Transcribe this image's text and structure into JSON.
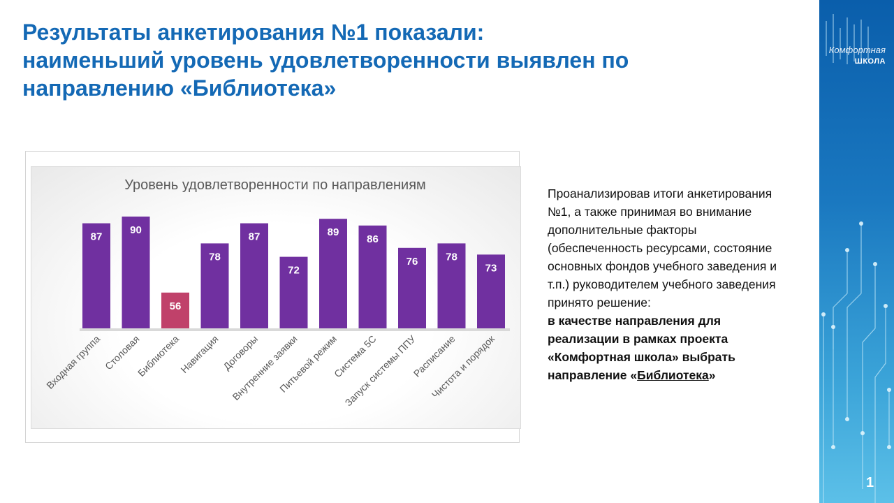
{
  "title": {
    "line1": "Результаты анкетирования №1 показали:",
    "line2": "наименьший уровень удовлетворенности выявлен по",
    "line3": "направлению «Библиотека»"
  },
  "chart_data": {
    "type": "bar",
    "title": "Уровень удовлетворенности по направлениям",
    "categories": [
      "Входная группа",
      "Столовая",
      "Библиотека",
      "Навигация",
      "Договоры",
      "Внутренние заявки",
      "Питьевой режим",
      "Система 5С",
      "Запуск системы ППУ",
      "Расписание",
      "Чистота и порядок"
    ],
    "values": [
      87,
      90,
      56,
      78,
      87,
      72,
      89,
      86,
      76,
      78,
      73
    ],
    "highlight_index": 2,
    "ylim": [
      40,
      90
    ],
    "colors": {
      "bar": "#7030a0",
      "highlight": "#c0416a",
      "label": "#ffffff",
      "axis_text": "#595959"
    }
  },
  "description": {
    "normal": "Проанализировав  итоги анкетирования  №1, а также принимая  во внимание дополнительные  факторы (обеспеченность ресурсами, состояние основных фондов учебного заведения и т.п.) руководителем  учебного заведения принято  решение:",
    "bold_prefix": "в качестве направления для реализации в рамках проекта «Комфортная школа» выбрать направление «",
    "bold_underlined": "Библиотека",
    "bold_suffix": "»"
  },
  "logo": {
    "line1": "Комфортная",
    "line2": "ШКОЛА",
    "icon": "comfort-school-logo-icon"
  },
  "slide_number": "1"
}
